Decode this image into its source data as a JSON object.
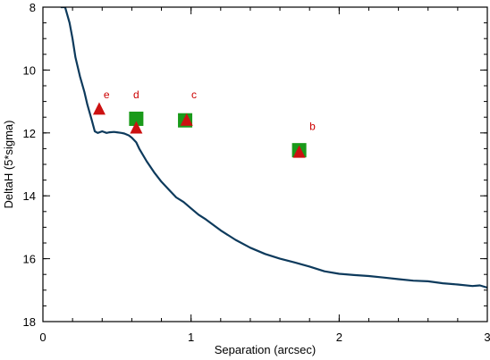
{
  "chart_data": {
    "type": "scatter",
    "title": "",
    "xlabel": "Separation (arcsec)",
    "ylabel": "DeltaH (5*sigma)",
    "xlim": [
      0,
      3
    ],
    "ylim": [
      18,
      8
    ],
    "y_inverted": true,
    "grid": false,
    "x_ticks": [
      "0",
      "1",
      "2",
      "3"
    ],
    "y_ticks": [
      "8",
      "10",
      "12",
      "14",
      "16",
      "18"
    ],
    "series": [
      {
        "kind": "line",
        "color": "#0d3a5c",
        "x": [
          0.12,
          0.15,
          0.18,
          0.2,
          0.22,
          0.25,
          0.28,
          0.3,
          0.33,
          0.35,
          0.37,
          0.4,
          0.43,
          0.45,
          0.48,
          0.5,
          0.53,
          0.55,
          0.58,
          0.6,
          0.63,
          0.65,
          0.7,
          0.75,
          0.8,
          0.85,
          0.9,
          0.95,
          1.0,
          1.05,
          1.1,
          1.2,
          1.3,
          1.4,
          1.5,
          1.6,
          1.7,
          1.8,
          1.9,
          2.0,
          2.1,
          2.2,
          2.3,
          2.4,
          2.5,
          2.6,
          2.7,
          2.8,
          2.9,
          2.95,
          3.0
        ],
        "y": [
          8.0,
          8.0,
          8.5,
          9.0,
          9.6,
          10.2,
          10.7,
          11.1,
          11.6,
          11.95,
          12.0,
          11.95,
          12.0,
          11.98,
          11.97,
          11.98,
          12.0,
          12.02,
          12.08,
          12.15,
          12.3,
          12.5,
          12.9,
          13.25,
          13.55,
          13.8,
          14.05,
          14.2,
          14.4,
          14.6,
          14.75,
          15.1,
          15.4,
          15.65,
          15.85,
          16.0,
          16.12,
          16.25,
          16.4,
          16.48,
          16.52,
          16.55,
          16.6,
          16.65,
          16.7,
          16.72,
          16.78,
          16.82,
          16.87,
          16.85,
          16.92
        ]
      },
      {
        "kind": "square",
        "color": "#1a9a1a",
        "x": [
          0.63,
          0.96,
          1.73
        ],
        "y": [
          11.55,
          11.6,
          12.55
        ]
      },
      {
        "kind": "triangle",
        "color": "#cc1111",
        "x": [
          0.38,
          0.63,
          0.97,
          1.73
        ],
        "y": [
          11.25,
          11.85,
          11.6,
          12.62
        ]
      }
    ],
    "annotations": [
      {
        "text": "e",
        "x": 0.43,
        "y": 10.9
      },
      {
        "text": "d",
        "x": 0.63,
        "y": 10.9
      },
      {
        "text": "c",
        "x": 1.02,
        "y": 10.9
      },
      {
        "text": "b",
        "x": 1.82,
        "y": 11.9
      }
    ]
  }
}
